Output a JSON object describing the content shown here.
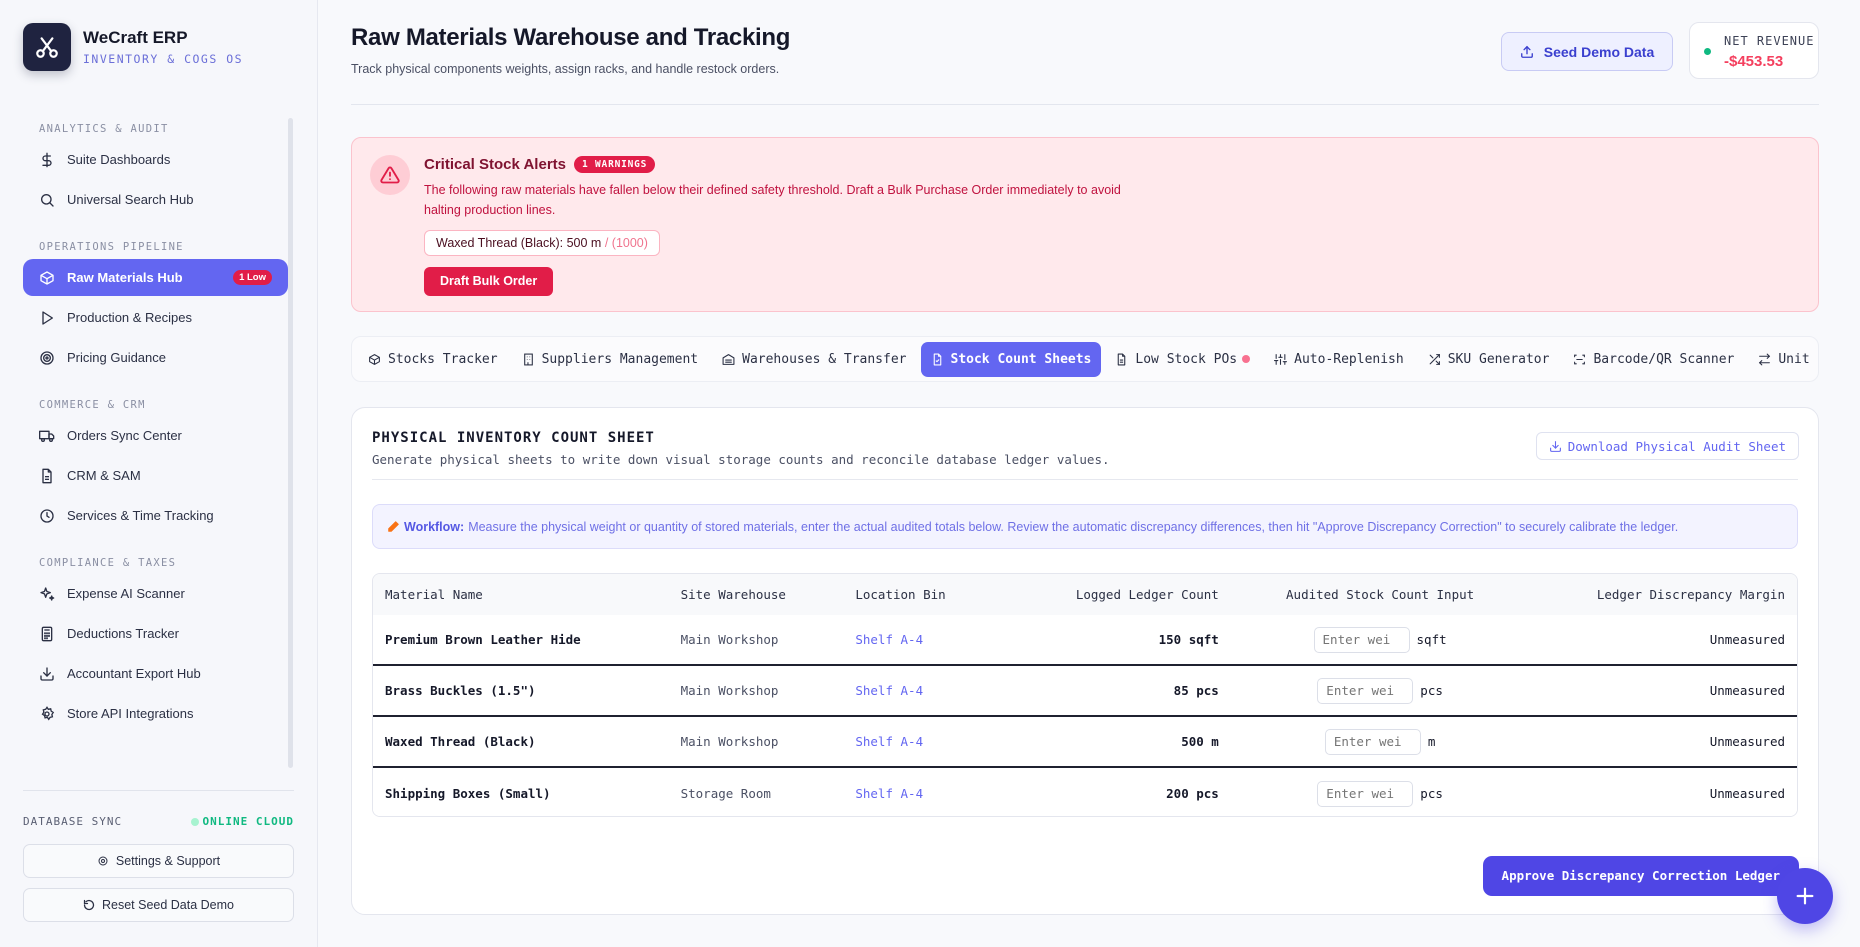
{
  "brand": {
    "name": "WeCraft ERP",
    "subtitle": "INVENTORY & COGS OS"
  },
  "sidebar": {
    "sections": [
      {
        "title": "ANALYTICS & AUDIT",
        "items": [
          {
            "label": "Suite Dashboards",
            "icon": "dollar-icon"
          },
          {
            "label": "Universal Search Hub",
            "icon": "search-icon"
          }
        ]
      },
      {
        "title": "OPERATIONS PIPELINE",
        "items": [
          {
            "label": "Raw Materials Hub",
            "icon": "box-icon",
            "badge": "1 Low",
            "active": true
          },
          {
            "label": "Production & Recipes",
            "icon": "play-icon"
          },
          {
            "label": "Pricing Guidance",
            "icon": "target-icon"
          }
        ]
      },
      {
        "title": "COMMERCE & CRM",
        "items": [
          {
            "label": "Orders Sync Center",
            "icon": "truck-icon"
          },
          {
            "label": "CRM & SAM",
            "icon": "file-icon"
          },
          {
            "label": "Services & Time Tracking",
            "icon": "clock-icon"
          }
        ]
      },
      {
        "title": "COMPLIANCE & TAXES",
        "items": [
          {
            "label": "Expense AI Scanner",
            "icon": "sparkle-icon"
          },
          {
            "label": "Deductions Tracker",
            "icon": "calculator-icon"
          },
          {
            "label": "Accountant Export Hub",
            "icon": "download-icon"
          },
          {
            "label": "Store API Integrations",
            "icon": "gear-icon"
          }
        ]
      }
    ],
    "sync_label": "DATABASE SYNC",
    "sync_status": "ONLINE CLOUD",
    "settings_label": "Settings & Support",
    "reset_label": "Reset Seed Data Demo"
  },
  "header": {
    "title": "Raw Materials Warehouse and Tracking",
    "subtitle": "Track physical components weights, assign racks, and handle restock orders.",
    "seed_label": "Seed Demo Data",
    "revenue_label": "NET REVENUE",
    "revenue_value": "-$453.53"
  },
  "alert": {
    "title": "Critical Stock Alerts",
    "badge": "1 WARNINGS",
    "text": "The following raw materials have fallen below their defined safety threshold. Draft a Bulk Purchase Order immediately to avoid halting production lines.",
    "chip_item": "Waxed Thread (Black): 500 m",
    "chip_limit": " / (1000)",
    "button": "Draft Bulk Order"
  },
  "tabs": [
    {
      "label": "Stocks Tracker",
      "icon": "cube-icon"
    },
    {
      "label": "Suppliers Management",
      "icon": "building-icon"
    },
    {
      "label": "Warehouses & Transfer",
      "icon": "warehouse-icon"
    },
    {
      "label": "Stock Count Sheets",
      "icon": "sheet-icon",
      "active": true
    },
    {
      "label": "Low Stock POs",
      "icon": "file-icon",
      "dot": true
    },
    {
      "label": "Auto-Replenish",
      "icon": "sliders-icon"
    },
    {
      "label": "SKU Generator",
      "icon": "shuffle-icon"
    },
    {
      "label": "Barcode/QR Scanner",
      "icon": "scan-icon"
    },
    {
      "label": "Unit Converte",
      "icon": "swap-icon"
    }
  ],
  "card": {
    "title": "PHYSICAL INVENTORY COUNT SHEET",
    "subtitle": "Generate physical sheets to write down visual storage counts and reconcile database ledger values.",
    "download_label": "Download Physical Audit Sheet",
    "workflow_label": "Workflow:",
    "workflow_text": "Measure the physical weight or quantity of stored materials, enter the actual audited totals below. Review the automatic discrepancy differences, then hit \"Approve Discrepancy Correction\" to securely calibrate the ledger.",
    "columns": [
      "Material Name",
      "Site Warehouse",
      "Location Bin",
      "Logged Ledger Count",
      "Audited Stock Count Input",
      "Ledger Discrepancy Margin"
    ],
    "rows": [
      {
        "name": "Premium Brown Leather Hide",
        "site": "Main Workshop",
        "bin": "Shelf A-4",
        "count": "150 sqft",
        "placeholder": "Enter wei",
        "unit": "sqft",
        "margin": "Unmeasured"
      },
      {
        "name": "Brass Buckles (1.5\")",
        "site": "Main Workshop",
        "bin": "Shelf A-4",
        "count": "85 pcs",
        "placeholder": "Enter wei",
        "unit": "pcs",
        "margin": "Unmeasured"
      },
      {
        "name": "Waxed Thread (Black)",
        "site": "Main Workshop",
        "bin": "Shelf A-4",
        "count": "500 m",
        "placeholder": "Enter wei",
        "unit": "m",
        "margin": "Unmeasured"
      },
      {
        "name": "Shipping Boxes (Small)",
        "site": "Storage Room",
        "bin": "Shelf A-4",
        "count": "200 pcs",
        "placeholder": "Enter wei",
        "unit": "pcs",
        "margin": "Unmeasured"
      }
    ],
    "approve_label": "Approve Discrepancy Correction Ledger"
  },
  "colors": {
    "accent": "#6366f1",
    "danger": "#e11d48",
    "success": "#10b981"
  }
}
